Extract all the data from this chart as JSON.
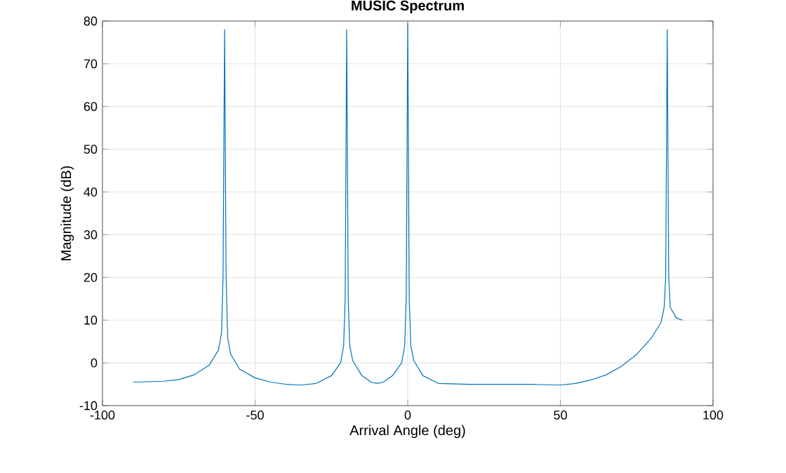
{
  "chart_data": {
    "type": "line",
    "title": "MUSIC Spectrum",
    "xlabel": "Arrival Angle (deg)",
    "ylabel": "Magnitude (dB)",
    "xlim": [
      -100,
      100
    ],
    "ylim": [
      -10,
      80
    ],
    "xticks": [
      -100,
      -50,
      0,
      50,
      100
    ],
    "yticks": [
      -10,
      0,
      10,
      20,
      30,
      40,
      50,
      60,
      70,
      80
    ],
    "grid": true,
    "x": [
      -90,
      -80,
      -75,
      -70,
      -65,
      -62,
      -61,
      -60.5,
      -60,
      -59.5,
      -59,
      -58,
      -55,
      -50,
      -45,
      -40,
      -35,
      -30,
      -25,
      -22,
      -21,
      -20.5,
      -20,
      -19.5,
      -19,
      -18,
      -15,
      -12,
      -10,
      -8,
      -5,
      -2,
      -1,
      -0.5,
      0,
      0.5,
      1,
      2,
      5,
      10,
      20,
      30,
      40,
      50,
      55,
      60,
      65,
      70,
      75,
      80,
      83,
      84,
      84.5,
      85,
      85.5,
      86,
      88,
      90
    ],
    "series": [
      {
        "color": "#0072bd",
        "values": [
          -4.5,
          -4.3,
          -3.9,
          -2.8,
          -0.5,
          3,
          7,
          20,
          78,
          20,
          6,
          2,
          -1.5,
          -3.5,
          -4.5,
          -5,
          -5.2,
          -4.8,
          -3,
          0,
          4,
          15,
          78,
          15,
          4,
          0.5,
          -3,
          -4.5,
          -4.8,
          -4.5,
          -3,
          0,
          4,
          15,
          79.5,
          15,
          4,
          0.5,
          -3,
          -4.8,
          -5,
          -5,
          -5,
          -5.2,
          -4.8,
          -4,
          -2.8,
          -0.8,
          2,
          6,
          9.5,
          13,
          20,
          78,
          20,
          13,
          10.5,
          10
        ]
      }
    ]
  }
}
